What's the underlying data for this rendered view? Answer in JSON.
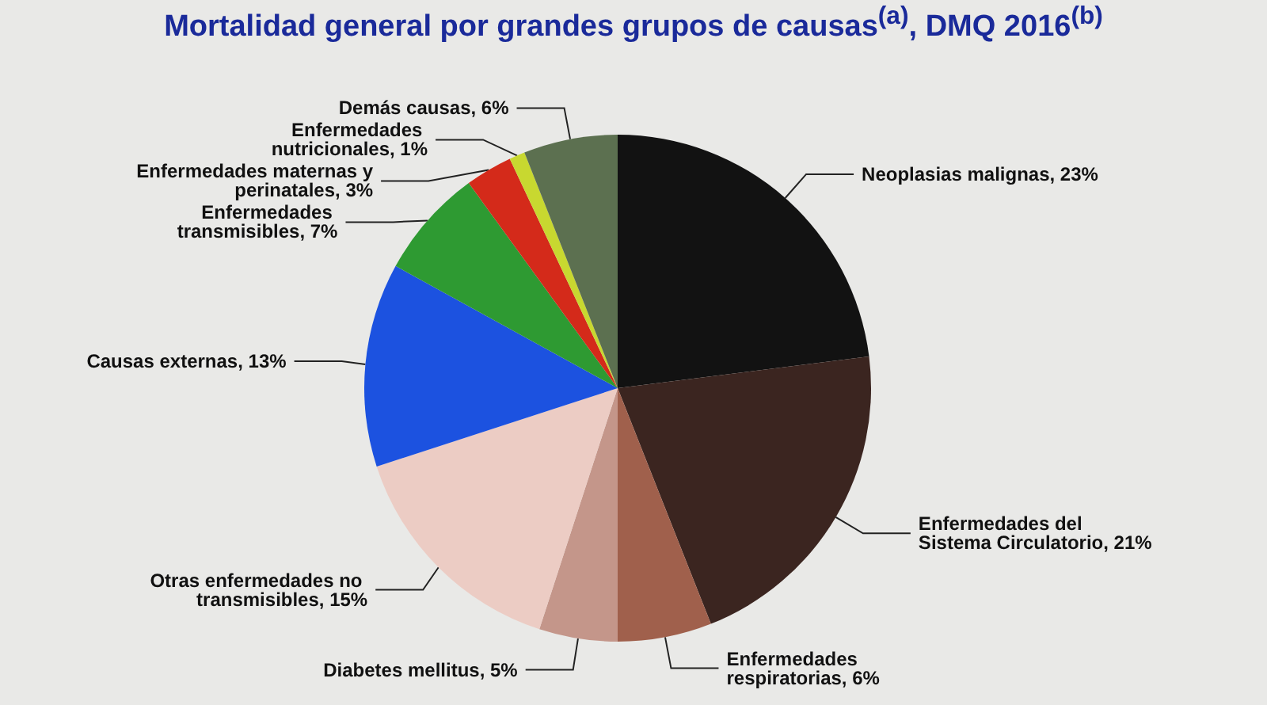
{
  "chart_data": {
    "type": "pie",
    "title": "Mortalidad general por grandes grupos de causas$^{(a)}$, DMQ 2016$^{(b)}$",
    "categories": [
      "Neoplasias malignas",
      "Enfermedades del Sistema Circulatorio",
      "Enfermedades respiratorias",
      "Diabetes mellitus",
      "Otras enfermedades no transmisibles",
      "Causas externas",
      "Enfermedades transmisibles",
      "Enfermedades maternas y perinatales",
      "Enfermedades nutricionales",
      "Demás causas"
    ],
    "values": [
      23,
      21,
      6,
      5,
      15,
      13,
      7,
      3,
      1,
      6
    ],
    "value_labels": [
      "23%",
      "21%",
      "6%",
      "5%",
      "15%",
      "13%",
      "7%",
      "3%",
      "1%",
      "6%"
    ],
    "colors": [
      "#121212",
      "#3b2520",
      "#a0604c",
      "#c4968a",
      "#ecccc4",
      "#1c52e0",
      "#2e9a32",
      "#d42a1a",
      "#c8d830",
      "#5c7050"
    ]
  }
}
